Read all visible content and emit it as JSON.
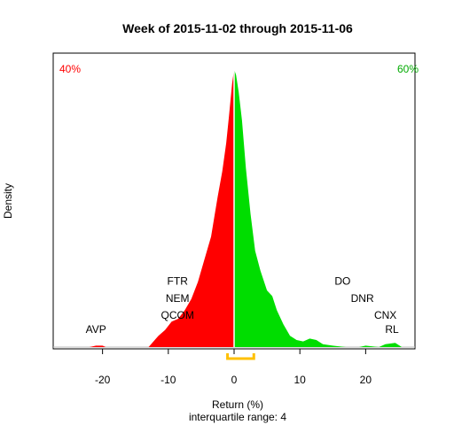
{
  "chart_data": {
    "type": "area",
    "title": "Week of 2015-11-02 through 2015-11-06",
    "xlabel": "Return (%)",
    "ylabel": "Density",
    "subtitle": "interquartile range: 4",
    "xlim": [
      -27.5,
      27.5
    ],
    "ylim": [
      0,
      1
    ],
    "x_ticks": [
      "-20",
      "-10",
      "0",
      "10",
      "20"
    ],
    "x_tick_values": [
      -20,
      -10,
      0,
      10,
      20
    ],
    "split_at": 0,
    "negative_share_label": "40%",
    "positive_share_label": "60%",
    "negative_color": "#ff0000",
    "positive_color": "#00dd00",
    "iqr_color": "#ffc000",
    "iqr": [
      -1,
      3
    ],
    "density": {
      "x": [
        -27.5,
        -22,
        -21,
        -20,
        -19.5,
        -13,
        -11.5,
        -10.5,
        -9.5,
        -8.5,
        -7.5,
        -6.5,
        -5.5,
        -4.5,
        -3.5,
        -2.5,
        -1.8,
        -1.2,
        -0.8,
        -0.3,
        0,
        0.3,
        0.7,
        1.2,
        1.8,
        2.5,
        3.2,
        4,
        5,
        5.8,
        6.5,
        7.5,
        8.5,
        9.5,
        10.5,
        11.5,
        12.5,
        13.5,
        15,
        17,
        19,
        20,
        22,
        23,
        24.5,
        25.5,
        27.5
      ],
      "y": [
        0,
        0,
        0.005,
        0.005,
        0,
        0,
        0.04,
        0.06,
        0.09,
        0.1,
        0.13,
        0.17,
        0.23,
        0.31,
        0.39,
        0.53,
        0.62,
        0.72,
        0.81,
        0.93,
        0.98,
        0.96,
        0.9,
        0.8,
        0.63,
        0.47,
        0.34,
        0.27,
        0.2,
        0.18,
        0.13,
        0.08,
        0.04,
        0.025,
        0.02,
        0.03,
        0.025,
        0.01,
        0.005,
        0,
        0,
        0.005,
        0,
        0.01,
        0.015,
        0,
        0
      ]
    },
    "annotations": [
      {
        "text": "FTR",
        "x": -8.6,
        "y": 0.22
      },
      {
        "text": "NEM",
        "x": -8.6,
        "y": 0.16
      },
      {
        "text": "QCOM",
        "x": -8.6,
        "y": 0.1
      },
      {
        "text": "AVP",
        "x": -21,
        "y": 0.05
      },
      {
        "text": "DO",
        "x": 16.5,
        "y": 0.22
      },
      {
        "text": "DNR",
        "x": 19.5,
        "y": 0.16
      },
      {
        "text": "CNX",
        "x": 23,
        "y": 0.1
      },
      {
        "text": "RL",
        "x": 24,
        "y": 0.05
      }
    ]
  }
}
